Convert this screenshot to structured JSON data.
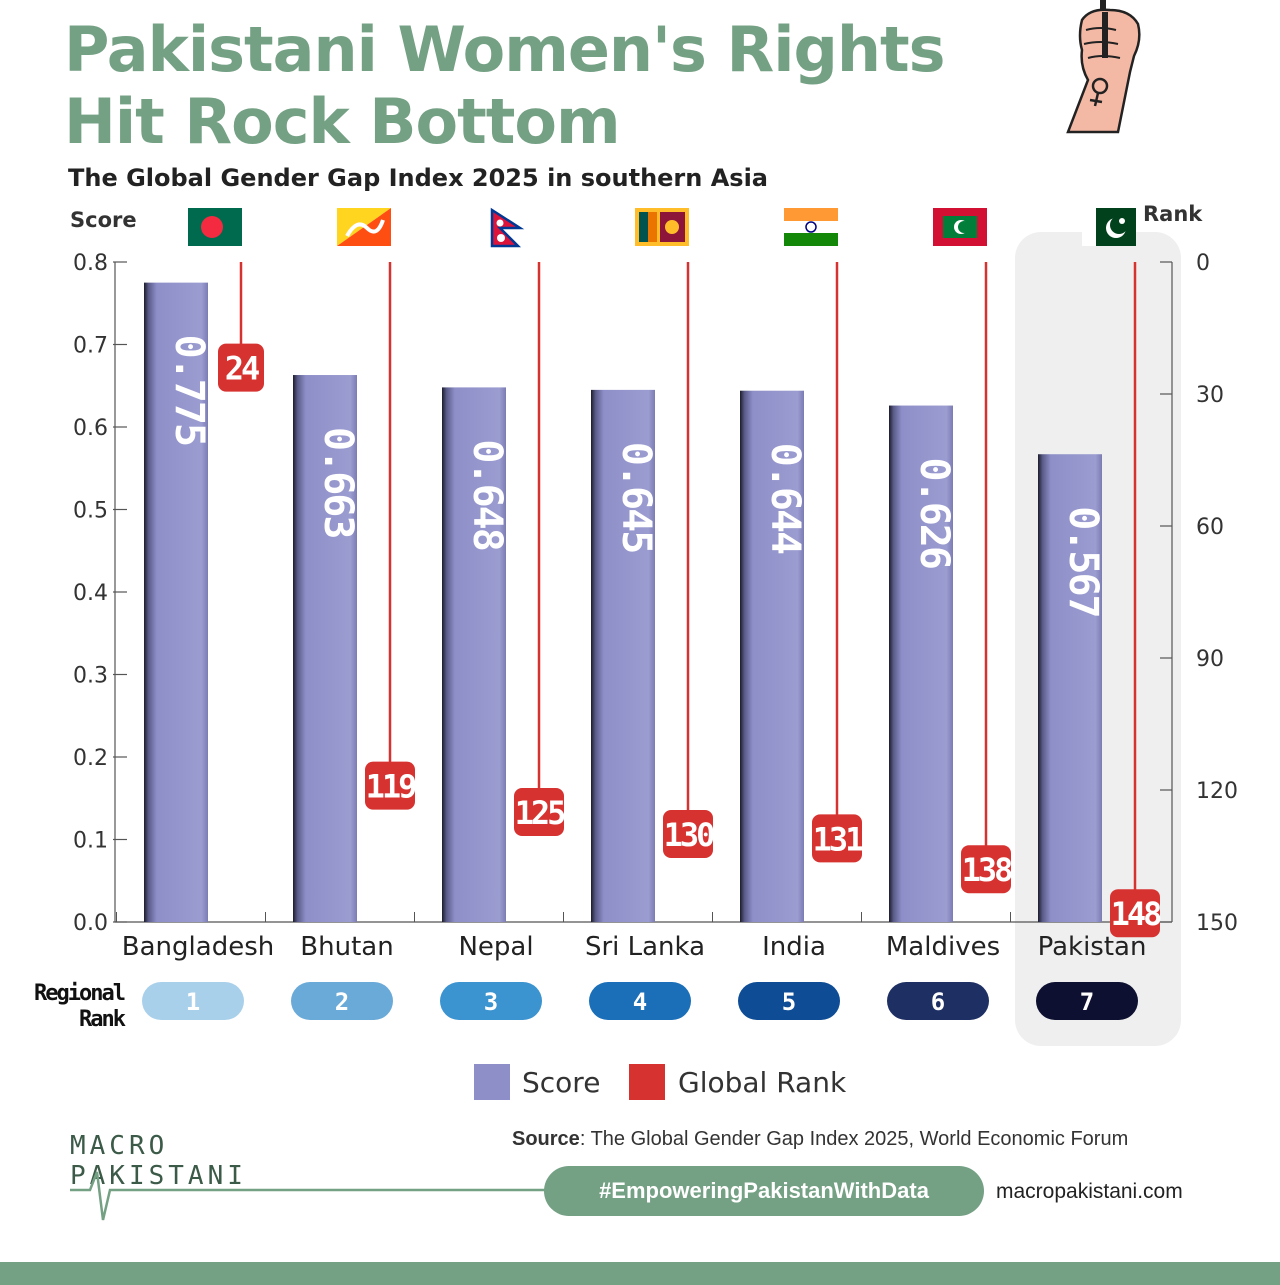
{
  "title_line1": "Pakistani Women's Rights",
  "title_line2": "Hit Rock Bottom",
  "subtitle": "The Global Gender Gap Index 2025 in southern Asia",
  "chart_data": {
    "type": "bar",
    "title": "The Global Gender Gap Index 2025 in southern Asia",
    "ylabel": "Score",
    "y2label": "Rank",
    "ylim": [
      0,
      0.8
    ],
    "y2lim": [
      0,
      150
    ],
    "yticks": [
      "0.0",
      "0.1",
      "0.2",
      "0.3",
      "0.4",
      "0.5",
      "0.6",
      "0.7",
      "0.8"
    ],
    "y2ticks": [
      "0",
      "30",
      "60",
      "90",
      "120",
      "150"
    ],
    "categories": [
      "Bangladesh",
      "Bhutan",
      "Nepal",
      "Sri Lanka",
      "India",
      "Maldives",
      "Pakistan"
    ],
    "series": [
      {
        "name": "Score",
        "color": "#8e8fc8",
        "values": [
          0.775,
          0.663,
          0.648,
          0.645,
          0.644,
          0.626,
          0.567
        ],
        "labels": [
          "0.775",
          "0.663",
          "0.648",
          "0.645",
          "0.644",
          "0.626",
          "0.567"
        ]
      },
      {
        "name": "Global Rank",
        "color": "#d63230",
        "values": [
          24,
          119,
          125,
          130,
          131,
          138,
          148
        ]
      }
    ],
    "regional_rank_label_line1": "Regional",
    "regional_rank_label_line2": "Rank",
    "regional_rank": [
      "1",
      "2",
      "3",
      "4",
      "5",
      "6",
      "7"
    ],
    "regional_rank_colors": [
      "#a9d0ea",
      "#6aaad8",
      "#3b93cf",
      "#1a6fb8",
      "#0e4d95",
      "#1e2f63",
      "#0d1030"
    ],
    "legend": [
      "Score",
      "Global Rank"
    ],
    "legend_position": "bottom-center",
    "highlight": "Pakistan"
  },
  "source_label": "Source",
  "source_text": ": The Global Gender Gap Index 2025, World Economic Forum",
  "hashtag": "#EmpoweringPakistanWithData",
  "website": "macropakistani.com",
  "logo_line1": "MACRO",
  "logo_line2": "PAKISTANI",
  "icons": {
    "fist": "raised-fist-female-symbol-icon",
    "flags": [
      "bangladesh-flag-icon",
      "bhutan-flag-icon",
      "nepal-flag-icon",
      "sri-lanka-flag-icon",
      "india-flag-icon",
      "maldives-flag-icon",
      "pakistan-flag-icon"
    ]
  },
  "colors": {
    "accent": "#74a084",
    "bar": "#8e8fc8",
    "rank": "#d63230"
  }
}
